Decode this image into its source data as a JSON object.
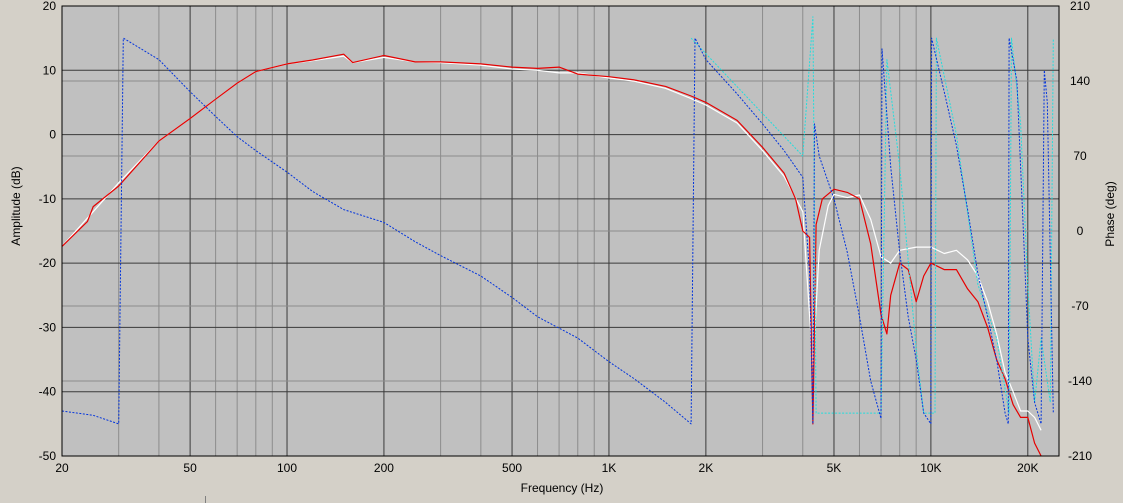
{
  "chart_data": {
    "type": "line",
    "xlabel": "Frequency (Hz)",
    "ylabel_left": "Amplitude (dB)",
    "ylabel_right": "Phase (deg)",
    "x_scale": "log",
    "xlim": [
      20,
      25000
    ],
    "ylim_left": [
      -50,
      20
    ],
    "ylim_right": [
      -210,
      210
    ],
    "grid": true,
    "legend": "none",
    "x_ticks": [
      {
        "value": 20,
        "label": "20"
      },
      {
        "value": 50,
        "label": "50"
      },
      {
        "value": 100,
        "label": "100"
      },
      {
        "value": 200,
        "label": "200"
      },
      {
        "value": 500,
        "label": "500"
      },
      {
        "value": 1000,
        "label": "1K"
      },
      {
        "value": 2000,
        "label": "2K"
      },
      {
        "value": 5000,
        "label": "5K"
      },
      {
        "value": 10000,
        "label": "10K"
      },
      {
        "value": 20000,
        "label": "20K"
      }
    ],
    "y_ticks_left": [
      20,
      10,
      0,
      -10,
      -20,
      -30,
      -40,
      -50
    ],
    "y_ticks_right": [
      210,
      140,
      70,
      0,
      -70,
      -140,
      -210
    ],
    "colors": {
      "plot_bg": "#c0c0c0",
      "window_bg": "#d4d0c8",
      "grid_major": "#3a3a3a",
      "grid_minor": "#8c8c8c",
      "amp_red": "#e60000",
      "amp_white": "#ffffff",
      "phase_blue": "#0033dd",
      "phase_cyan": "#22dddd"
    },
    "series": [
      {
        "axis": "left",
        "color": "amp_white",
        "width": 1.2,
        "points": [
          [
            20,
            -17.4
          ],
          [
            25,
            -12
          ],
          [
            30,
            -7.5
          ],
          [
            40,
            -1
          ],
          [
            50,
            2.5
          ],
          [
            60,
            5.5
          ],
          [
            70,
            8
          ],
          [
            80,
            9.8
          ],
          [
            100,
            11
          ],
          [
            120,
            11.5
          ],
          [
            150,
            12.2
          ],
          [
            160,
            11.2
          ],
          [
            200,
            12
          ],
          [
            250,
            11.3
          ],
          [
            300,
            11.2
          ],
          [
            400,
            10.8
          ],
          [
            500,
            10.2
          ],
          [
            600,
            10
          ],
          [
            700,
            9.6
          ],
          [
            800,
            9.6
          ],
          [
            1000,
            8.8
          ],
          [
            1200,
            8.3
          ],
          [
            1500,
            7.2
          ],
          [
            1800,
            5.6
          ],
          [
            2000,
            4.6
          ],
          [
            2500,
            1.8
          ],
          [
            3000,
            -2.5
          ],
          [
            3500,
            -6.5
          ],
          [
            4000,
            -12
          ],
          [
            4300,
            -36
          ],
          [
            4500,
            -18
          ],
          [
            4800,
            -11
          ],
          [
            5000,
            -9.3
          ],
          [
            5500,
            -9.8
          ],
          [
            6000,
            -9.4
          ],
          [
            6500,
            -13.2
          ],
          [
            7000,
            -19
          ],
          [
            7500,
            -20
          ],
          [
            8000,
            -18
          ],
          [
            9000,
            -17.5
          ],
          [
            10000,
            -17.5
          ],
          [
            11000,
            -18.5
          ],
          [
            12000,
            -18
          ],
          [
            13000,
            -19.5
          ],
          [
            14000,
            -22
          ],
          [
            15000,
            -26
          ],
          [
            16000,
            -31
          ],
          [
            17000,
            -37
          ],
          [
            18000,
            -40
          ],
          [
            19000,
            -43
          ],
          [
            20000,
            -43
          ],
          [
            21000,
            -44
          ],
          [
            22000,
            -46
          ]
        ]
      },
      {
        "axis": "left",
        "color": "amp_red",
        "width": 1.2,
        "points": [
          [
            20,
            -17.4
          ],
          [
            24,
            -13.5
          ],
          [
            25,
            -11.2
          ],
          [
            30,
            -8
          ],
          [
            40,
            -1
          ],
          [
            50,
            2.5
          ],
          [
            60,
            5.5
          ],
          [
            70,
            8
          ],
          [
            80,
            9.8
          ],
          [
            100,
            11
          ],
          [
            120,
            11.6
          ],
          [
            150,
            12.5
          ],
          [
            160,
            11.2
          ],
          [
            200,
            12.3
          ],
          [
            250,
            11.3
          ],
          [
            300,
            11.3
          ],
          [
            400,
            11
          ],
          [
            500,
            10.5
          ],
          [
            600,
            10.3
          ],
          [
            700,
            10.5
          ],
          [
            800,
            9.4
          ],
          [
            1000,
            9
          ],
          [
            1200,
            8.5
          ],
          [
            1500,
            7.5
          ],
          [
            1800,
            6
          ],
          [
            2000,
            5
          ],
          [
            2500,
            2.2
          ],
          [
            3000,
            -2
          ],
          [
            3500,
            -6
          ],
          [
            3800,
            -10
          ],
          [
            4000,
            -15
          ],
          [
            4200,
            -16
          ],
          [
            4300,
            -45
          ],
          [
            4400,
            -14
          ],
          [
            4600,
            -10
          ],
          [
            5000,
            -8.5
          ],
          [
            5500,
            -9
          ],
          [
            6000,
            -10
          ],
          [
            6500,
            -17
          ],
          [
            7000,
            -28
          ],
          [
            7300,
            -31
          ],
          [
            7500,
            -25
          ],
          [
            8000,
            -20
          ],
          [
            8500,
            -21
          ],
          [
            9000,
            -26
          ],
          [
            9500,
            -22
          ],
          [
            10000,
            -20
          ],
          [
            11000,
            -21
          ],
          [
            12000,
            -21
          ],
          [
            13000,
            -24
          ],
          [
            14000,
            -26
          ],
          [
            15000,
            -30
          ],
          [
            16000,
            -35
          ],
          [
            17000,
            -38
          ],
          [
            18000,
            -42
          ],
          [
            19000,
            -44
          ],
          [
            20000,
            -44
          ],
          [
            21000,
            -48
          ],
          [
            22000,
            -50
          ]
        ]
      },
      {
        "axis": "right",
        "color": "phase_cyan",
        "width": 1,
        "points": [
          [
            1800,
            180
          ],
          [
            4000,
            70
          ],
          [
            4300,
            200
          ],
          [
            4400,
            -170
          ],
          [
            7000,
            -170
          ],
          [
            7300,
            160
          ],
          [
            8000,
            60
          ],
          [
            9000,
            -110
          ],
          [
            9500,
            -170
          ],
          [
            10300,
            -170
          ],
          [
            10400,
            180
          ],
          [
            12000,
            90
          ],
          [
            14000,
            -50
          ],
          [
            16000,
            -100
          ],
          [
            17500,
            -170
          ],
          [
            17800,
            180
          ],
          [
            19000,
            100
          ],
          [
            20000,
            -50
          ],
          [
            21000,
            -160
          ],
          [
            22000,
            -100
          ],
          [
            23500,
            -160
          ],
          [
            24000,
            180
          ]
        ]
      },
      {
        "axis": "right",
        "color": "phase_blue",
        "width": 1,
        "points": [
          [
            20,
            -168
          ],
          [
            25,
            -172
          ],
          [
            30,
            -180
          ],
          [
            31,
            180
          ],
          [
            40,
            160
          ],
          [
            50,
            130
          ],
          [
            60,
            107
          ],
          [
            70,
            88
          ],
          [
            80,
            75
          ],
          [
            100,
            55
          ],
          [
            120,
            37
          ],
          [
            150,
            20
          ],
          [
            200,
            8
          ],
          [
            250,
            -10
          ],
          [
            300,
            -23
          ],
          [
            400,
            -42
          ],
          [
            500,
            -62
          ],
          [
            600,
            -80
          ],
          [
            800,
            -100
          ],
          [
            1000,
            -122
          ],
          [
            1200,
            -138
          ],
          [
            1500,
            -160
          ],
          [
            1800,
            -180
          ],
          [
            1850,
            180
          ],
          [
            2000,
            160
          ],
          [
            2500,
            128
          ],
          [
            3000,
            100
          ],
          [
            3500,
            75
          ],
          [
            4000,
            50
          ],
          [
            4200,
            -40
          ],
          [
            4300,
            -180
          ],
          [
            4350,
            100
          ],
          [
            4500,
            70
          ],
          [
            5000,
            30
          ],
          [
            5500,
            -20
          ],
          [
            6000,
            -80
          ],
          [
            6500,
            -140
          ],
          [
            7000,
            -175
          ],
          [
            7050,
            170
          ],
          [
            7500,
            60
          ],
          [
            8000,
            -20
          ],
          [
            8500,
            -80
          ],
          [
            9000,
            -120
          ],
          [
            9500,
            -170
          ],
          [
            10000,
            -180
          ],
          [
            10050,
            180
          ],
          [
            11000,
            130
          ],
          [
            12000,
            80
          ],
          [
            13000,
            20
          ],
          [
            14000,
            -40
          ],
          [
            15000,
            -80
          ],
          [
            16000,
            -120
          ],
          [
            17000,
            -170
          ],
          [
            17400,
            -180
          ],
          [
            17500,
            180
          ],
          [
            18500,
            140
          ],
          [
            19000,
            60
          ],
          [
            19500,
            -20
          ],
          [
            20000,
            -100
          ],
          [
            21000,
            -160
          ],
          [
            22000,
            -180
          ],
          [
            22500,
            150
          ],
          [
            23000,
            120
          ],
          [
            24000,
            -170
          ]
        ]
      }
    ]
  }
}
